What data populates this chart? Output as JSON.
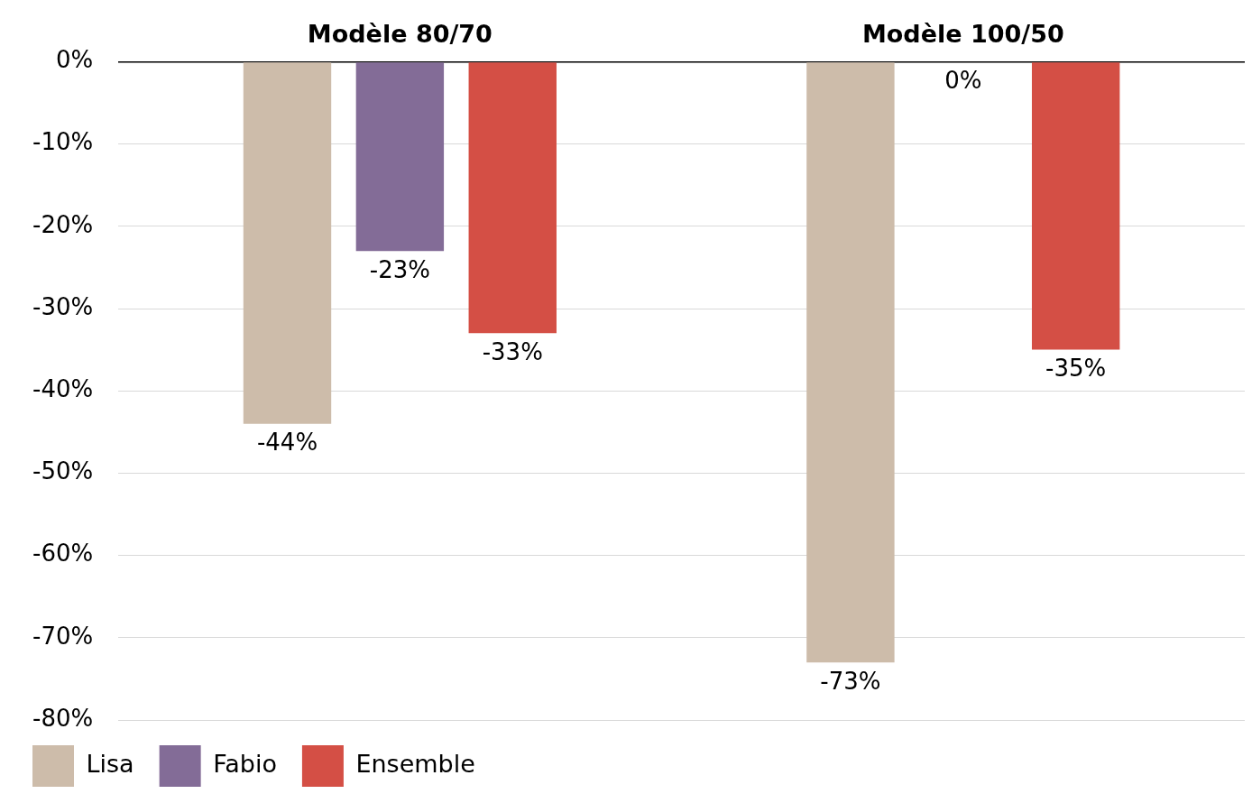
{
  "chart_data": {
    "type": "bar",
    "categories": [
      "Modèle 80/70",
      "Modèle 100/50"
    ],
    "series": [
      {
        "name": "Lisa",
        "color": "#cdbcaa",
        "values": [
          -44,
          -73
        ],
        "value_labels": [
          "-44%",
          "-73%"
        ]
      },
      {
        "name": "Fabio",
        "color": "#836c97",
        "values": [
          -23,
          0
        ],
        "value_labels": [
          "-23%",
          "0%"
        ]
      },
      {
        "name": "Ensemble",
        "color": "#d44f45",
        "values": [
          -33,
          -35
        ],
        "value_labels": [
          "-33%",
          "-35%"
        ]
      }
    ],
    "ylim": [
      -80,
      0
    ],
    "yticks": [
      {
        "value": 0,
        "label": "0%"
      },
      {
        "value": -10,
        "label": "-10%"
      },
      {
        "value": -20,
        "label": "-20%"
      },
      {
        "value": -30,
        "label": "-30%"
      },
      {
        "value": -40,
        "label": "-40%"
      },
      {
        "value": -50,
        "label": "-50%"
      },
      {
        "value": -60,
        "label": "-60%"
      },
      {
        "value": -70,
        "label": "-70%"
      },
      {
        "value": -80,
        "label": "-80%"
      }
    ],
    "grid": "y",
    "legend": "bottom left"
  }
}
